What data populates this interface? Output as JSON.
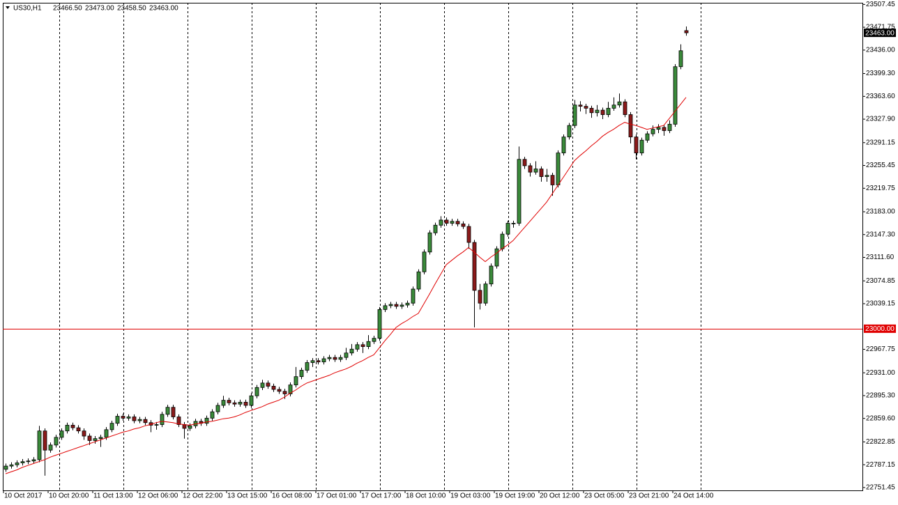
{
  "chart_data": {
    "type": "candlestick",
    "symbol": "US30,H1",
    "header_ohlc": [
      "23466.50",
      "23473.00",
      "23458.50",
      "23463.00"
    ],
    "categories": [
      "10 Oct 2017",
      null,
      null,
      null,
      null,
      null,
      null,
      null,
      "10 Oct 20:00",
      null,
      null,
      null,
      null,
      null,
      null,
      null,
      "11 Oct 13:00",
      null,
      null,
      null,
      null,
      null,
      null,
      null,
      "12 Oct 06:00",
      null,
      null,
      null,
      null,
      null,
      null,
      null,
      "12 Oct 22:00",
      null,
      null,
      null,
      null,
      null,
      null,
      null,
      "13 Oct 15:00",
      null,
      null,
      null,
      null,
      null,
      null,
      null,
      "16 Oct 08:00",
      null,
      null,
      null,
      null,
      null,
      null,
      null,
      "17 Oct 01:00",
      null,
      null,
      null,
      null,
      null,
      null,
      null,
      "17 Oct 17:00",
      null,
      null,
      null,
      null,
      null,
      null,
      null,
      "18 Oct 10:00",
      null,
      null,
      null,
      null,
      null,
      null,
      null,
      "19 Oct 03:00",
      null,
      null,
      null,
      null,
      null,
      null,
      null,
      "19 Oct 19:00",
      null,
      null,
      null,
      null,
      null,
      null,
      null,
      "20 Oct 12:00",
      null,
      null,
      null,
      null,
      null,
      null,
      null,
      "23 Oct 05:00",
      null,
      null,
      null,
      null,
      null,
      null,
      null,
      "23 Oct 21:00",
      null,
      null,
      null,
      null,
      null,
      null,
      null,
      "24 Oct 14:00",
      null,
      null
    ],
    "open": [
      22780,
      22785,
      22787,
      22790,
      22792,
      22793,
      22795,
      22840,
      22810,
      22818,
      22830,
      22840,
      22849,
      22845,
      22840,
      22832,
      22825,
      22828,
      22830,
      22842,
      22852,
      22863,
      22860,
      22862,
      22856,
      22858,
      22853,
      22849,
      22850,
      22866,
      22877,
      22862,
      22850,
      22844,
      22848,
      22855,
      22852,
      22860,
      22870,
      22880,
      22888,
      22884,
      22882,
      22885,
      22880,
      22895,
      22908,
      22915,
      22910,
      22905,
      22902,
      22898,
      22912,
      22925,
      22935,
      22947,
      22950,
      22948,
      22953,
      22955,
      22952,
      22955,
      22962,
      22968,
      22975,
      22972,
      22980,
      22985,
      23030,
      23036,
      23038,
      23035,
      23037,
      23040,
      23062,
      23089,
      23120,
      23150,
      23162,
      23170,
      23165,
      23168,
      23164,
      23160,
      23135,
      23060,
      23040,
      23070,
      23098,
      23125,
      23148,
      23165,
      23165,
      23265,
      23255,
      23245,
      23250,
      23238,
      23240,
      23225,
      23275,
      23300,
      23318,
      23350,
      23348,
      23345,
      23338,
      23342,
      23335,
      23345,
      23350,
      23355,
      23335,
      23300,
      23275,
      23295,
      23305,
      23312,
      23315,
      23310,
      23320,
      23410,
      23466.5
    ],
    "high": [
      22789,
      22791,
      22794,
      22796,
      22797,
      22799,
      22848,
      22844,
      22822,
      22834,
      22844,
      22853,
      22853,
      22849,
      22844,
      22836,
      22832,
      22834,
      22846,
      22856,
      22867,
      22867,
      22866,
      22866,
      22862,
      22862,
      22857,
      22854,
      22870,
      22881,
      22881,
      22866,
      22854,
      22852,
      22859,
      22859,
      22864,
      22874,
      22884,
      22895,
      22892,
      22888,
      22889,
      22889,
      22899,
      22912,
      22920,
      22919,
      22914,
      22909,
      22906,
      22916,
      22940,
      22939,
      22951,
      22954,
      22954,
      22957,
      22959,
      22959,
      22959,
      22970,
      22976,
      22979,
      22979,
      22990,
      22989,
      23034,
      23040,
      23042,
      23042,
      23041,
      23044,
      23066,
      23093,
      23124,
      23154,
      23166,
      23176,
      23174,
      23172,
      23172,
      23168,
      23164,
      23139,
      23070,
      23074,
      23102,
      23129,
      23152,
      23169,
      23169,
      23285,
      23269,
      23259,
      23262,
      23254,
      23250,
      23244,
      23279,
      23304,
      23322,
      23358,
      23356,
      23352,
      23349,
      23350,
      23346,
      23355,
      23362,
      23368,
      23359,
      23339,
      23304,
      23299,
      23309,
      23318,
      23320,
      23319,
      23326,
      23414,
      23445,
      23473
    ],
    "low": [
      22776,
      22781,
      22783,
      22786,
      22788,
      22789,
      22791,
      22770,
      22806,
      22814,
      22826,
      22836,
      22841,
      22836,
      22826,
      22818,
      22820,
      22815,
      22826,
      22838,
      22848,
      22856,
      22856,
      22852,
      22852,
      22849,
      22838,
      22842,
      22846,
      22862,
      22858,
      22846,
      22828,
      22840,
      22844,
      22848,
      22848,
      22856,
      22866,
      22876,
      22880,
      22878,
      22878,
      22876,
      22876,
      22891,
      22904,
      22906,
      22901,
      22898,
      22890,
      22894,
      22908,
      22921,
      22931,
      22940,
      22944,
      22944,
      22949,
      22948,
      22948,
      22951,
      22958,
      22964,
      22962,
      22968,
      22976,
      22981,
      23026,
      23032,
      23031,
      23031,
      23033,
      23036,
      23058,
      23085,
      23116,
      23146,
      23158,
      23161,
      23161,
      23160,
      23156,
      23125,
      23002,
      23030,
      23036,
      23066,
      23094,
      23121,
      23144,
      23158,
      23161,
      23250,
      23238,
      23241,
      23230,
      23230,
      23208,
      23221,
      23271,
      23296,
      23314,
      23340,
      23336,
      23330,
      23332,
      23328,
      23331,
      23341,
      23346,
      23331,
      23290,
      23265,
      23271,
      23291,
      23301,
      23306,
      23302,
      23306,
      23316,
      23406,
      23458.5
    ],
    "close": [
      22785,
      22787,
      22790,
      22792,
      22793,
      22795,
      22840,
      22810,
      22818,
      22830,
      22840,
      22849,
      22845,
      22840,
      22832,
      22825,
      22828,
      22830,
      22842,
      22852,
      22863,
      22860,
      22862,
      22856,
      22858,
      22853,
      22849,
      22850,
      22866,
      22877,
      22862,
      22850,
      22844,
      22848,
      22855,
      22852,
      22860,
      22870,
      22880,
      22888,
      22884,
      22882,
      22885,
      22880,
      22895,
      22908,
      22915,
      22910,
      22905,
      22902,
      22898,
      22912,
      22925,
      22935,
      22947,
      22950,
      22948,
      22953,
      22955,
      22952,
      22955,
      22962,
      22968,
      22975,
      22972,
      22980,
      22985,
      23030,
      23036,
      23038,
      23035,
      23037,
      23040,
      23062,
      23089,
      23120,
      23150,
      23162,
      23170,
      23165,
      23168,
      23164,
      23160,
      23135,
      23060,
      23040,
      23070,
      23098,
      23125,
      23148,
      23165,
      23165,
      23265,
      23255,
      23245,
      23250,
      23238,
      23240,
      23225,
      23275,
      23300,
      23318,
      23350,
      23348,
      23345,
      23338,
      23342,
      23335,
      23345,
      23350,
      23355,
      23335,
      23300,
      23275,
      23295,
      23305,
      23312,
      23315,
      23310,
      23320,
      23410,
      23435,
      23463
    ],
    "bull_color": "#3a8a3a",
    "bear_color": "#8b1a1a",
    "ma": {
      "color": "#e00000",
      "values": [
        22773,
        22776,
        22779,
        22783,
        22786,
        22789,
        22792,
        22795,
        22799,
        22802,
        22805,
        22808,
        22811,
        22814,
        22817,
        22820,
        22823,
        22826,
        22829,
        22832,
        22835,
        22838,
        22840,
        22843,
        22845,
        22848,
        22850,
        22853,
        22855,
        22854,
        22853,
        22851,
        22850,
        22849,
        22851,
        22852,
        22854,
        22855,
        22857,
        22859,
        22860,
        22862,
        22865,
        22869,
        22872,
        22875,
        22878,
        22882,
        22885,
        22888,
        22893,
        22899,
        22904,
        22910,
        22915,
        22918,
        22921,
        22924,
        22927,
        22931,
        22934,
        22937,
        22941,
        22946,
        22950,
        22955,
        22959,
        22970,
        22981,
        22991,
        23002,
        23008,
        23013,
        23019,
        23024,
        23039,
        23054,
        23070,
        23085,
        23100,
        23107,
        23114,
        23120,
        23127,
        23120,
        23112,
        23105,
        23112,
        23118,
        23125,
        23131,
        23138,
        23148,
        23158,
        23168,
        23178,
        23188,
        23198,
        23211,
        23224,
        23237,
        23250,
        23263,
        23271,
        23278,
        23286,
        23293,
        23301,
        23307,
        23312,
        23318,
        23323,
        23320,
        23318,
        23315,
        23312,
        23314,
        23316,
        23318,
        23329,
        23340,
        23351,
        23362
      ]
    },
    "ylim": [
      22747,
      23510
    ],
    "yticks": [
      23507.45,
      23471.75,
      {
        "value": 23436,
        "label": "23436.00"
      },
      {
        "value": 23399.3,
        "label": "23399.30"
      },
      {
        "value": 23363.6,
        "label": "23363.60"
      },
      {
        "value": 23327.9,
        "label": "23327.90"
      },
      23291.15,
      23255.45,
      23219.75,
      {
        "value": 23183,
        "label": "23183.00"
      },
      {
        "value": 23147.3,
        "label": "23147.30"
      },
      {
        "value": 23111.6,
        "label": "23111.60"
      },
      23074.85,
      23039.15,
      22967.75,
      {
        "value": 22931,
        "label": "22931.00"
      },
      {
        "value": 22895.3,
        "label": "22895.30"
      },
      {
        "value": 22859.6,
        "label": "22859.60"
      },
      22822.85,
      22787.15,
      22751.45
    ],
    "hline": {
      "value": 23000,
      "label": "23000.00",
      "color": "#e00000"
    },
    "last_price": {
      "value": 23463,
      "label": "23463.00"
    }
  }
}
